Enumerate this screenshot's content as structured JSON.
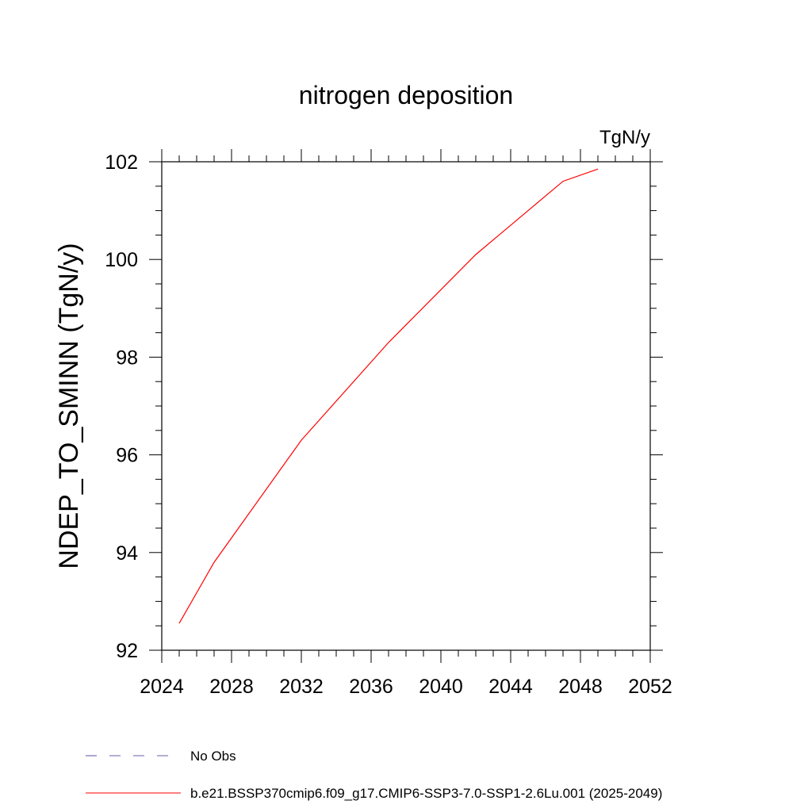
{
  "chart_data": {
    "type": "line",
    "title": "nitrogen deposition",
    "units_label": "TgN/y",
    "ylabel": "NDEP_TO_SMINN  (TgN/y)",
    "xlabel": "",
    "xlim": [
      2024,
      2052
    ],
    "ylim": [
      92,
      102
    ],
    "x_ticks": [
      2024,
      2028,
      2032,
      2036,
      2040,
      2044,
      2048,
      2052
    ],
    "y_ticks": [
      92,
      94,
      96,
      98,
      100,
      102
    ],
    "x_tick_labels": [
      "2024",
      "2028",
      "2032",
      "2036",
      "2040",
      "2044",
      "2048",
      "2052"
    ],
    "y_tick_labels": [
      "92",
      "94",
      "96",
      "98",
      "100",
      "102"
    ],
    "grid": false,
    "series": [
      {
        "name": "b.e21.BSSP370cmip6.f09_g17.CMIP6-SSP3-7.0-SSP1-2.6Lu.001 (2025-2049)",
        "color": "#ff0000",
        "dash": "solid",
        "x": [
          2025,
          2027,
          2032,
          2037,
          2042,
          2047,
          2049
        ],
        "y": [
          92.55,
          93.8,
          96.3,
          98.3,
          100.1,
          101.6,
          101.85
        ]
      }
    ],
    "legend": [
      {
        "label": "No Obs",
        "color": "#6b5ea8",
        "dash": "dashed"
      },
      {
        "label": "b.e21.BSSP370cmip6.f09_g17.CMIP6-SSP3-7.0-SSP1-2.6Lu.001 (2025-2049)",
        "color": "#ff0000",
        "dash": "solid"
      }
    ],
    "legend_position": "bottom"
  }
}
